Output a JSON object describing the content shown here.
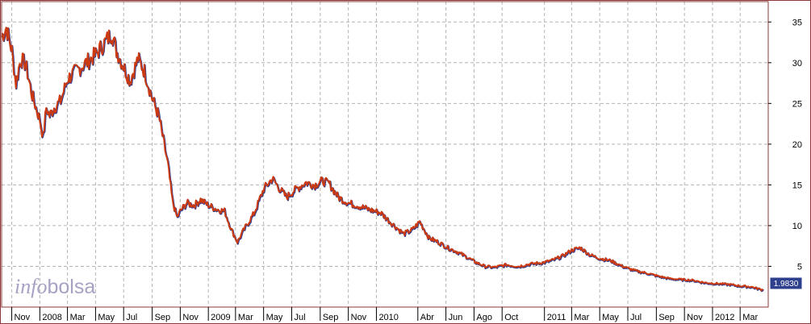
{
  "chart_data": {
    "type": "line",
    "title": "",
    "xlabel": "",
    "ylabel": "",
    "watermark": {
      "text_left": "info",
      "text_right": "bolsa"
    },
    "last_value_label": "1.9830",
    "y_ticks": [
      "5",
      "10",
      "15",
      "20",
      "25",
      "30",
      "35"
    ],
    "y_tick_values": [
      5,
      10,
      15,
      20,
      25,
      30,
      35
    ],
    "ylim": [
      0,
      37.5
    ],
    "x_tick_labels": [
      "Nov",
      "2008",
      "Mar",
      "May",
      "Jul",
      "Sep",
      "Nov",
      "2009",
      "Mar",
      "May",
      "Jul",
      "Sep",
      "Nov",
      "2010",
      "Abr",
      "Jun",
      "Ago",
      "Oct",
      "2011",
      "Mar",
      "May",
      "Jul",
      "Sep",
      "Nov",
      "2012",
      "Mar"
    ],
    "x_tick_dates": [
      "2007-11-01",
      "2008-01-01",
      "2008-03-01",
      "2008-05-01",
      "2008-07-01",
      "2008-09-01",
      "2008-11-01",
      "2009-01-01",
      "2009-03-01",
      "2009-05-01",
      "2009-07-01",
      "2009-09-01",
      "2009-11-01",
      "2010-01-01",
      "2010-04-01",
      "2010-06-01",
      "2010-08-01",
      "2010-10-01",
      "2011-01-01",
      "2011-03-01",
      "2011-05-01",
      "2011-07-01",
      "2011-09-01",
      "2011-11-01",
      "2012-01-01",
      "2012-03-01"
    ],
    "xlim": [
      "2007-10-10",
      "2012-05-01"
    ],
    "grid": true,
    "colors": {
      "series_primary": "#cc3a12",
      "series_secondary": "#2a3a8f",
      "grid": "#b4b4b4",
      "frame": "#8a3a3a",
      "label_bg": "#2e3f8e",
      "label_text": "#ffffff"
    },
    "series": [
      {
        "x": [
          "2007-10-10",
          "2007-10-20",
          "2007-11-01",
          "2007-11-10",
          "2007-11-20",
          "2007-12-01",
          "2007-12-15",
          "2008-01-01",
          "2008-01-08",
          "2008-01-15",
          "2008-01-22",
          "2008-02-01",
          "2008-02-15",
          "2008-03-01",
          "2008-03-20",
          "2008-04-10",
          "2008-05-01",
          "2008-05-20",
          "2008-06-05",
          "2008-06-15",
          "2008-07-01",
          "2008-07-15",
          "2008-08-01",
          "2008-08-15",
          "2008-09-01",
          "2008-09-15",
          "2008-09-25",
          "2008-10-05",
          "2008-10-15",
          "2008-10-25",
          "2008-11-01",
          "2008-11-15",
          "2008-12-01",
          "2008-12-15",
          "2009-01-01",
          "2009-01-20",
          "2009-02-05",
          "2009-02-20",
          "2009-03-05",
          "2009-03-20",
          "2009-04-10",
          "2009-05-01",
          "2009-05-20",
          "2009-06-05",
          "2009-06-20",
          "2009-07-10",
          "2009-08-01",
          "2009-08-20",
          "2009-09-05",
          "2009-09-20",
          "2009-10-10",
          "2009-11-01",
          "2009-11-20",
          "2009-12-15",
          "2010-01-10",
          "2010-02-05",
          "2010-03-01",
          "2010-03-20",
          "2010-04-05",
          "2010-04-25",
          "2010-05-15",
          "2010-06-05",
          "2010-06-25",
          "2010-07-15",
          "2010-08-05",
          "2010-08-25",
          "2010-09-15",
          "2010-10-10",
          "2010-11-05",
          "2010-12-01",
          "2011-01-01",
          "2011-01-20",
          "2011-02-10",
          "2011-03-01",
          "2011-03-20",
          "2011-04-10",
          "2011-05-01",
          "2011-05-25",
          "2011-06-20",
          "2011-07-15",
          "2011-08-10",
          "2011-09-05",
          "2011-10-01",
          "2011-10-25",
          "2011-11-20",
          "2011-12-15",
          "2012-01-10",
          "2012-02-05",
          "2012-03-01",
          "2012-03-25",
          "2012-04-20"
        ],
        "values": [
          33.2,
          34.3,
          31.5,
          27.4,
          30.5,
          29.8,
          26.0,
          23.0,
          20.8,
          24.5,
          23.5,
          24.5,
          25.3,
          28.0,
          29.0,
          30.0,
          31.0,
          32.4,
          33.7,
          31.5,
          29.5,
          27.8,
          30.5,
          29.0,
          25.6,
          23.5,
          20.5,
          17.5,
          13.0,
          11.0,
          11.8,
          12.8,
          12.5,
          13.2,
          12.5,
          12.0,
          11.8,
          9.5,
          8.0,
          9.6,
          11.5,
          14.5,
          15.8,
          14.5,
          13.5,
          14.5,
          15.3,
          15.0,
          15.5,
          15.2,
          13.5,
          12.8,
          12.5,
          12.0,
          11.6,
          10.2,
          9.0,
          9.5,
          10.5,
          8.5,
          8.0,
          7.3,
          6.8,
          6.2,
          5.5,
          5.0,
          4.9,
          5.2,
          5.0,
          5.3,
          5.5,
          5.8,
          6.3,
          7.0,
          7.3,
          6.4,
          6.0,
          5.7,
          5.0,
          4.5,
          4.2,
          3.8,
          3.5,
          3.4,
          3.3,
          3.0,
          2.9,
          2.8,
          2.6,
          2.5,
          2.1
        ]
      }
    ]
  }
}
